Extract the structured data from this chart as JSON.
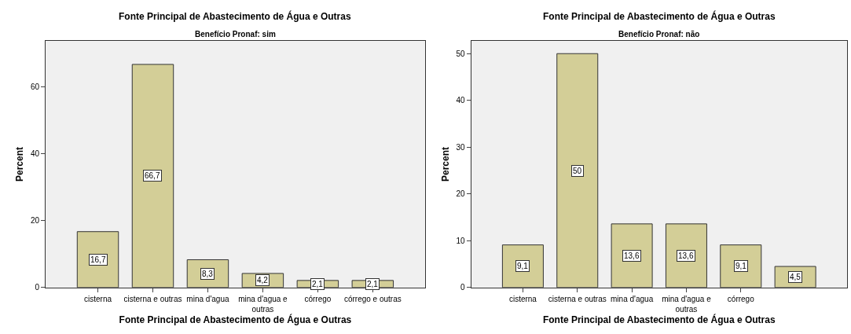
{
  "chart_data": [
    {
      "type": "bar",
      "title": "Fonte Principal de Abastecimento de Água e Outras",
      "subtitle": "Benefício Pronaf: sim",
      "xlabel": "Fonte Principal de Abastecimento de Água e Outras",
      "ylabel": "Percent",
      "categories": [
        "cisterna",
        "cisterna e outras",
        "mina d'agua",
        "mina d'agua e outras",
        "córrego",
        "córrego e outras"
      ],
      "values": [
        16.7,
        66.7,
        8.3,
        4.2,
        2.1,
        2.1
      ],
      "value_labels": [
        "16,7",
        "66,7",
        "8,3",
        "4,2",
        "2,1",
        "2,1"
      ],
      "color": "#d3ce97",
      "ylim": [
        0,
        73.7
      ],
      "yticks": [
        0,
        20,
        40,
        60
      ],
      "grid": false
    },
    {
      "type": "bar",
      "title": "Fonte Principal de Abastecimento de Água e Outras",
      "subtitle": "Benefício Pronaf: não",
      "xlabel": "Fonte Principal de Abastecimento de Água e Outras",
      "ylabel": "Percent",
      "categories": [
        "cisterna",
        "cisterna e outras",
        "mina d'agua",
        "mina d'agua e outras",
        "córrego",
        null
      ],
      "values": [
        9.1,
        50,
        13.6,
        13.6,
        9.1,
        4.5
      ],
      "value_labels": [
        "9,1",
        "50",
        "13,6",
        "13,6",
        "9,1",
        "4,5"
      ],
      "color": "#d3ce97",
      "ylim": [
        0,
        52.7
      ],
      "yticks": [
        0,
        10,
        20,
        30,
        40,
        50
      ],
      "grid": false
    }
  ]
}
